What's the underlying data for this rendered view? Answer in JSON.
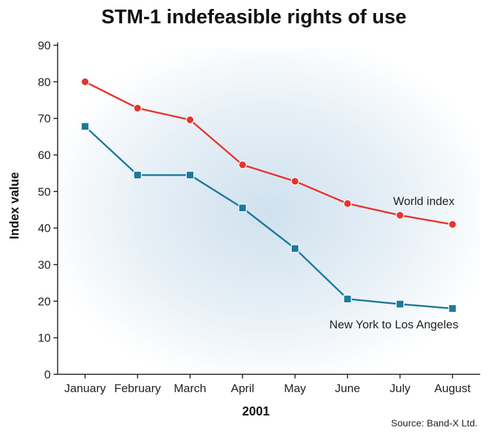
{
  "chart_data": {
    "type": "line",
    "title": "STM-1 indefeasible rights of use",
    "xlabel": "2001",
    "ylabel": "Index value",
    "ylim": [
      0,
      90
    ],
    "yticks": [
      0,
      10,
      20,
      30,
      40,
      50,
      60,
      70,
      80,
      90
    ],
    "categories": [
      "January",
      "February",
      "March",
      "April",
      "May",
      "June",
      "July",
      "August"
    ],
    "series": [
      {
        "name": "World index",
        "color": "#e8332e",
        "marker": "circle",
        "values": [
          80,
          72.8,
          69.6,
          57.3,
          52.8,
          46.7,
          43.5,
          41
        ]
      },
      {
        "name": "New York to Los Angeles",
        "color": "#1a7a99",
        "marker": "square",
        "values": [
          67.8,
          54.5,
          54.5,
          45.5,
          34.4,
          20.6,
          19.2,
          18
        ]
      }
    ],
    "source": "Source: Band-X Ltd."
  }
}
